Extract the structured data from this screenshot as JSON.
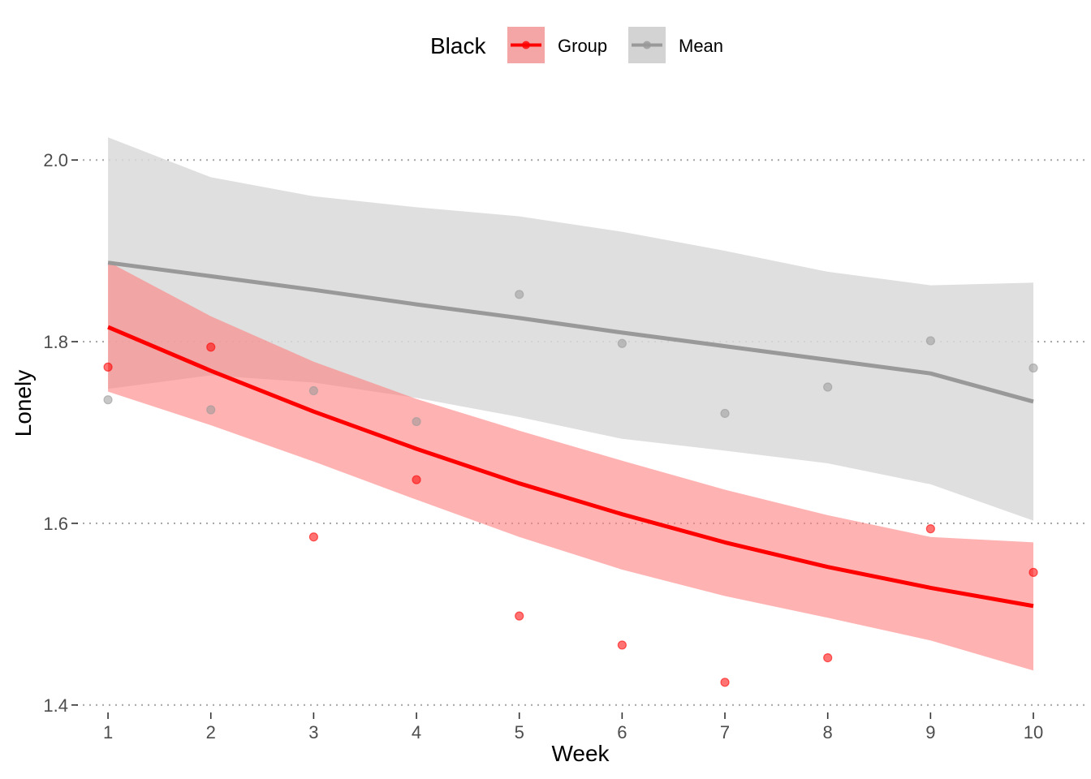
{
  "chart_data": {
    "type": "line",
    "xlabel": "Week",
    "ylabel": "Lonely",
    "xlim": [
      0.66,
      10.45
    ],
    "ylim": [
      1.39,
      2.06
    ],
    "x_ticks": [
      1,
      2,
      3,
      4,
      5,
      6,
      7,
      8,
      9,
      10
    ],
    "y_ticks": [
      1.4,
      1.6,
      1.8,
      2.0
    ],
    "y_tick_labels": [
      "1.4",
      "1.6",
      "1.8",
      "2.0"
    ],
    "grid": "horizontal-dotted",
    "legend": {
      "title": "Black",
      "position": "top",
      "entries": [
        {
          "label": "Group",
          "color": "#ff0000",
          "fill": "#f4a6a6"
        },
        {
          "label": "Mean",
          "color": "#999999",
          "fill": "#d3d3d3"
        }
      ]
    },
    "series": [
      {
        "name": "Mean",
        "color": "#999999",
        "band_color": "#d9d9d9",
        "fit_x": [
          1,
          2,
          3,
          4,
          5,
          6,
          7,
          8,
          9,
          10
        ],
        "fit_y": [
          1.887,
          1.872,
          1.857,
          1.841,
          1.826,
          1.81,
          1.795,
          1.78,
          1.765,
          1.734
        ],
        "band_upper": [
          2.025,
          1.981,
          1.96,
          1.948,
          1.938,
          1.921,
          1.9,
          1.877,
          1.862,
          1.865
        ],
        "band_lower": [
          1.748,
          1.763,
          1.755,
          1.738,
          1.717,
          1.693,
          1.68,
          1.666,
          1.643,
          1.603
        ],
        "points_x": [
          1,
          2,
          3,
          4,
          5,
          6,
          7,
          8,
          9,
          10
        ],
        "points_y": [
          1.736,
          1.725,
          1.746,
          1.712,
          1.852,
          1.798,
          1.721,
          1.75,
          1.801,
          1.771
        ]
      },
      {
        "name": "Group",
        "color": "#ff0000",
        "band_color": "#ff7f7f",
        "fit_x": [
          1,
          2,
          3,
          4,
          5,
          6,
          7,
          8,
          9,
          10
        ],
        "fit_y": [
          1.816,
          1.768,
          1.723,
          1.682,
          1.644,
          1.61,
          1.579,
          1.552,
          1.529,
          1.509
        ],
        "band_upper": [
          1.888,
          1.828,
          1.778,
          1.737,
          1.702,
          1.669,
          1.637,
          1.609,
          1.585,
          1.579
        ],
        "band_lower": [
          1.745,
          1.708,
          1.668,
          1.626,
          1.585,
          1.549,
          1.52,
          1.496,
          1.471,
          1.438
        ],
        "points_x": [
          1,
          2,
          3,
          4,
          5,
          6,
          7,
          8,
          9,
          10
        ],
        "points_y": [
          1.772,
          1.794,
          1.585,
          1.648,
          1.498,
          1.466,
          1.425,
          1.452,
          1.594,
          1.546
        ]
      }
    ]
  }
}
